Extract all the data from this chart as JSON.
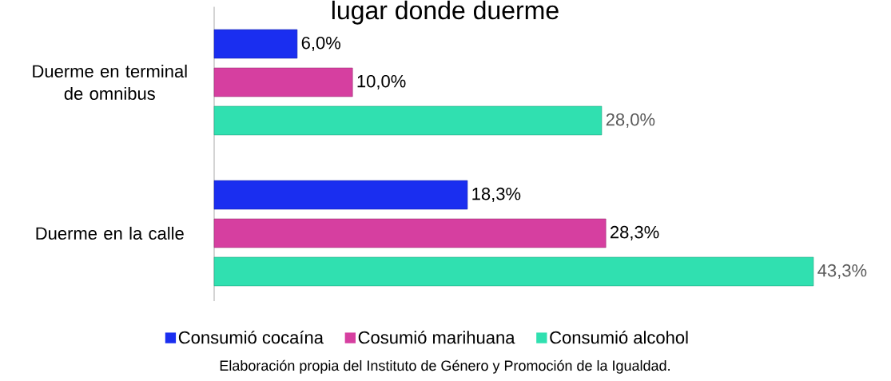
{
  "chart_data": {
    "type": "bar",
    "orientation": "horizontal",
    "title": "lugar donde duerme",
    "categories": [
      "Duerme en terminal de omnibus",
      "Duerme en la calle"
    ],
    "series": [
      {
        "name": "Consumió cocaína",
        "color": "#1a2ef0",
        "values": [
          6.0,
          18.3
        ],
        "value_labels": [
          "6,0%",
          "18,3%"
        ]
      },
      {
        "name": "Cosumió marihuana",
        "color": "#d63fa0",
        "values": [
          10.0,
          28.3
        ],
        "value_labels": [
          "10,0%",
          "28,3%"
        ]
      },
      {
        "name": "Consumió alcohol",
        "color": "#30e0b0",
        "values": [
          28.0,
          43.3
        ],
        "value_labels": [
          "28,0%",
          "43,3%"
        ]
      }
    ],
    "legend": "bottom",
    "annotations": [
      "Elaboración propia del Instituto de Género y Promoción de la Igualdad."
    ]
  }
}
